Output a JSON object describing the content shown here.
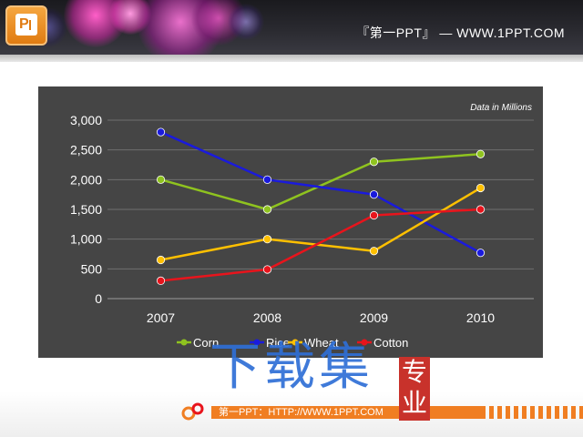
{
  "banner": {
    "title": "『第一PPT』 — WWW.1PPT.COM",
    "logo_icon": "powerpoint-logo-icon"
  },
  "chart_data": {
    "type": "line",
    "title": "",
    "annotation": "Data in Millions",
    "x": [
      "2007",
      "2008",
      "2009",
      "2010"
    ],
    "ylim": [
      0,
      3000
    ],
    "yticks": [
      0,
      500,
      1000,
      1500,
      2000,
      2500,
      3000
    ],
    "ytick_labels": [
      "0",
      "500",
      "1,000",
      "1,500",
      "2,000",
      "2,500",
      "3,000"
    ],
    "grid": true,
    "legend_position": "bottom",
    "series": [
      {
        "name": "Corn",
        "color": "#8fc31f",
        "values": [
          2000,
          1500,
          2300,
          2430
        ]
      },
      {
        "name": "Rice",
        "color": "#1a1adc",
        "values": [
          2800,
          2000,
          1750,
          770
        ]
      },
      {
        "name": "Wheat",
        "color": "#ffc000",
        "values": [
          650,
          1000,
          800,
          1860
        ]
      },
      {
        "name": "Cotton",
        "color": "#e8141c",
        "values": [
          300,
          490,
          1400,
          1500
        ]
      }
    ]
  },
  "footer": {
    "text": "第一PPT：HTTP://WWW.1PPT.COM"
  },
  "watermark": {
    "main_text": "下载集",
    "seal_text": "专业"
  }
}
